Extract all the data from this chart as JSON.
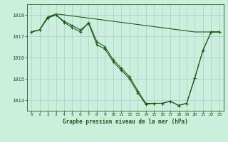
{
  "title": "Graphe pression niveau de la mer (hPa)",
  "bg_color": "#cceedd",
  "grid_color": "#aacccc",
  "line_color": "#1a5c1a",
  "xlim": [
    -0.5,
    23.5
  ],
  "ylim": [
    1013.5,
    1018.5
  ],
  "yticks": [
    1014,
    1015,
    1016,
    1017,
    1018
  ],
  "xticks": [
    0,
    1,
    2,
    3,
    4,
    5,
    6,
    7,
    8,
    9,
    10,
    11,
    12,
    13,
    14,
    15,
    16,
    17,
    18,
    19,
    20,
    21,
    22,
    23
  ],
  "flat_line": {
    "x": [
      0,
      1,
      2,
      3,
      4,
      5,
      6,
      7,
      8,
      9,
      10,
      11,
      12,
      13,
      14,
      15,
      16,
      17,
      18,
      19,
      20,
      21,
      22,
      23
    ],
    "y": [
      1017.2,
      1017.3,
      1017.9,
      1018.05,
      1018.0,
      1017.95,
      1017.9,
      1017.85,
      1017.8,
      1017.75,
      1017.7,
      1017.65,
      1017.6,
      1017.55,
      1017.5,
      1017.45,
      1017.4,
      1017.35,
      1017.3,
      1017.25,
      1017.2,
      1017.2,
      1017.2,
      1017.2
    ]
  },
  "line1": {
    "x": [
      0,
      1,
      2,
      3,
      4,
      5,
      6,
      7,
      8,
      9,
      10,
      11,
      12,
      13,
      14,
      15,
      16,
      17,
      18,
      19,
      20,
      21,
      22,
      23
    ],
    "y": [
      1017.2,
      1017.3,
      1017.85,
      1018.0,
      1017.65,
      1017.4,
      1017.2,
      1017.65,
      1016.75,
      1016.5,
      1015.9,
      1015.5,
      1015.1,
      1014.45,
      1013.85,
      1013.85,
      1013.85,
      1013.95,
      1013.75,
      1013.85,
      1015.05,
      1016.35,
      1017.2,
      1017.2
    ]
  },
  "line2": {
    "x": [
      0,
      1,
      2,
      3,
      4,
      5,
      6,
      7,
      8,
      9,
      10,
      11,
      12,
      13,
      14,
      15,
      16,
      17,
      18,
      19,
      20,
      21,
      22,
      23
    ],
    "y": [
      1017.2,
      1017.3,
      1017.9,
      1018.0,
      1017.7,
      1017.5,
      1017.3,
      1017.6,
      1016.6,
      1016.4,
      1015.8,
      1015.4,
      1015.0,
      1014.35,
      1013.8,
      1013.85,
      1013.85,
      1013.95,
      1013.75,
      1013.85,
      1015.05,
      1016.35,
      1017.2,
      1017.2
    ]
  }
}
